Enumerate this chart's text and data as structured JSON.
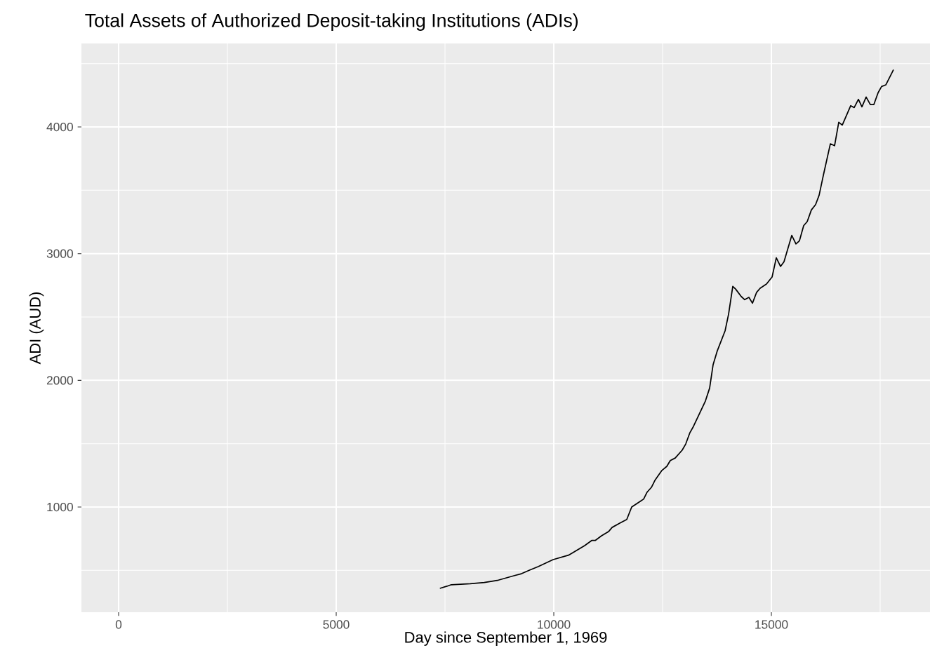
{
  "chart_data": {
    "type": "line",
    "title": "Total Assets of Authorized Deposit-taking Institutions (ADIs)",
    "xlabel": "Day since September 1, 1969",
    "ylabel": "ADI (AUD)",
    "x": [
      7382,
      7544,
      7645,
      8081,
      8403,
      8726,
      9097,
      9258,
      9452,
      9640,
      9984,
      10339,
      10710,
      10871,
      10952,
      11097,
      11258,
      11339,
      11516,
      11677,
      11790,
      11984,
      12065,
      12145,
      12242,
      12323,
      12484,
      12597,
      12677,
      12790,
      12952,
      13032,
      13129,
      13210,
      13484,
      13581,
      13661,
      13758,
      13936,
      14016,
      14113,
      14177,
      14306,
      14387,
      14484,
      14565,
      14661,
      14742,
      14887,
      15016,
      15113,
      15210,
      15290,
      15468,
      15565,
      15645,
      15742,
      15823,
      15919,
      16016,
      16097,
      16194,
      16355,
      16452,
      16548,
      16629,
      16823,
      16903,
      17000,
      17081,
      17177,
      17274,
      17355,
      17452,
      17532,
      17629,
      17806
    ],
    "values": [
      358,
      375,
      387,
      395,
      404,
      423,
      459,
      474,
      503,
      530,
      585,
      620,
      696,
      736,
      736,
      773,
      806,
      839,
      873,
      902,
      1000,
      1044,
      1063,
      1118,
      1155,
      1210,
      1289,
      1321,
      1367,
      1387,
      1450,
      1498,
      1588,
      1637,
      1837,
      1939,
      2124,
      2234,
      2391,
      2522,
      2742,
      2721,
      2662,
      2637,
      2655,
      2609,
      2695,
      2727,
      2760,
      2816,
      2967,
      2899,
      2936,
      3144,
      3077,
      3102,
      3221,
      3253,
      3345,
      3387,
      3461,
      3618,
      3867,
      3852,
      4037,
      4015,
      4168,
      4153,
      4218,
      4159,
      4236,
      4177,
      4177,
      4270,
      4319,
      4332,
      4452
    ],
    "color": "#000000",
    "xlim": [
      -855,
      18645
    ],
    "ylim": [
      170,
      4659
    ],
    "xticks": [
      0,
      5000,
      10000,
      15000
    ],
    "yticks": [
      1000,
      2000,
      3000,
      4000
    ],
    "grid": true
  }
}
